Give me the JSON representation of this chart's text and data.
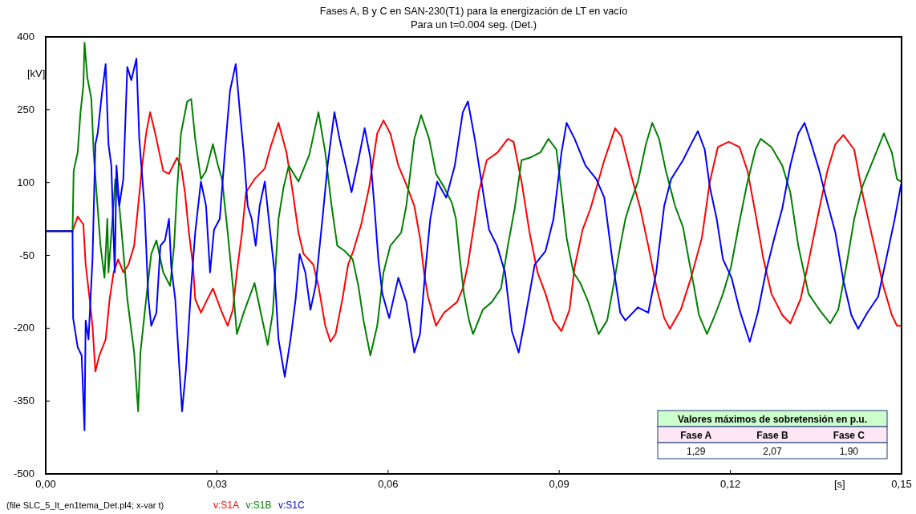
{
  "chart_data": {
    "type": "line",
    "title": "Fases A, B y C en SAN-230(T1) para la energización de LT en vacío",
    "subtitle": "Para un t=0.004 seg. (Det.)",
    "xlabel": "[s]",
    "ylabel": "[kV]",
    "xlim": [
      0,
      0.15
    ],
    "xticks": [
      {
        "value": 0,
        "label": "0,00"
      },
      {
        "value": 0.03,
        "label": "0,03"
      },
      {
        "value": 0.06,
        "label": "0,06"
      },
      {
        "value": 0.09,
        "label": "0,09"
      },
      {
        "value": 0.12,
        "label": "0,12"
      },
      {
        "value": 0.15,
        "label": "0,15"
      }
    ],
    "ylim": [
      -500,
      400
    ],
    "yticks": [
      -500,
      -350,
      -200,
      -50,
      100,
      250,
      400
    ],
    "grid": false,
    "legend": "bottom left",
    "marker": "none",
    "line_style": "solid",
    "annotations": [
      "(file SLC_5_lt_en1tema_Det.pl4; x-var t)",
      "Valores máximos de sobretensión en p.u.",
      "Fase A",
      "Fase B",
      "Fase C",
      "1,29",
      "2,07",
      "1,90"
    ],
    "series": [
      {
        "name": "v:S1A",
        "color": "#ff0000",
        "x": [
          0,
          0.0047,
          0.0056,
          0.0066,
          0.007,
          0.0077,
          0.0082,
          0.0087,
          0.0094,
          0.0105,
          0.0112,
          0.0119,
          0.0127,
          0.0136,
          0.0145,
          0.0155,
          0.0162,
          0.0169,
          0.0176,
          0.0183,
          0.0192,
          0.0199,
          0.0206,
          0.0216,
          0.023,
          0.0237,
          0.0244,
          0.0251,
          0.0258,
          0.0262,
          0.0272,
          0.0281,
          0.0293,
          0.0309,
          0.0319,
          0.0328,
          0.0335,
          0.0344,
          0.0351,
          0.0366,
          0.0384,
          0.0394,
          0.0408,
          0.0422,
          0.0433,
          0.0443,
          0.0452,
          0.0469,
          0.0478,
          0.049,
          0.0499,
          0.0508,
          0.052,
          0.053,
          0.0539,
          0.0553,
          0.0567,
          0.0581,
          0.0592,
          0.0604,
          0.0618,
          0.0632,
          0.0646,
          0.0656,
          0.0663,
          0.067,
          0.0684,
          0.0698,
          0.0721,
          0.0731,
          0.074,
          0.075,
          0.0759,
          0.0773,
          0.0792,
          0.081,
          0.082,
          0.0834,
          0.0848,
          0.0862,
          0.0876,
          0.089,
          0.0904,
          0.0918,
          0.0927,
          0.0941,
          0.0955,
          0.0979,
          0.0998,
          0.1009,
          0.1028,
          0.1042,
          0.1056,
          0.107,
          0.1084,
          0.1094,
          0.1113,
          0.1131,
          0.115,
          0.1164,
          0.1178,
          0.1197,
          0.1216,
          0.123,
          0.1244,
          0.1258,
          0.1272,
          0.1291,
          0.1305,
          0.1323,
          0.1337,
          0.1356,
          0.137,
          0.1384,
          0.1398,
          0.1417,
          0.1431,
          0.145,
          0.1468,
          0.1483,
          0.1492,
          0.1499
        ],
        "values": [
          0,
          0,
          30,
          14,
          -69,
          -140,
          -195,
          -289,
          -256,
          -223,
          -140,
          -85,
          -58,
          -85,
          -69,
          -30,
          52,
          135,
          201,
          245,
          201,
          162,
          124,
          118,
          151,
          135,
          80,
          -3,
          -69,
          -140,
          -168,
          -146,
          -118,
          -168,
          -195,
          -162,
          -85,
          -3,
          80,
          107,
          129,
          173,
          223,
          162,
          80,
          -3,
          -47,
          -69,
          -113,
          -195,
          -228,
          -212,
          -140,
          -69,
          -41,
          14,
          91,
          201,
          228,
          201,
          135,
          96,
          52,
          -14,
          -85,
          -135,
          -195,
          -168,
          -146,
          -118,
          -69,
          8,
          80,
          146,
          162,
          190,
          184,
          102,
          -3,
          -85,
          -129,
          -184,
          -206,
          -162,
          -74,
          3,
          47,
          146,
          212,
          195,
          107,
          47,
          -30,
          -113,
          -179,
          -201,
          -162,
          -96,
          -14,
          102,
          173,
          184,
          173,
          124,
          36,
          -58,
          -129,
          -173,
          -190,
          -140,
          -63,
          47,
          124,
          179,
          198,
          168,
          80,
          -19,
          -113,
          -173,
          -195,
          -195
        ]
      },
      {
        "name": "v:S1B",
        "color": "#008000",
        "x": [
          0,
          0.0047,
          0.0049,
          0.0056,
          0.0061,
          0.0066,
          0.0068,
          0.0073,
          0.008,
          0.0084,
          0.0089,
          0.0096,
          0.0103,
          0.0108,
          0.011,
          0.0117,
          0.0122,
          0.0129,
          0.0136,
          0.0143,
          0.0155,
          0.0162,
          0.0166,
          0.0176,
          0.0185,
          0.0194,
          0.0206,
          0.0218,
          0.0225,
          0.023,
          0.0237,
          0.0248,
          0.0255,
          0.0262,
          0.0272,
          0.0281,
          0.0293,
          0.0302,
          0.0309,
          0.0319,
          0.0328,
          0.0335,
          0.0347,
          0.0366,
          0.0377,
          0.0389,
          0.0398,
          0.0408,
          0.0417,
          0.0426,
          0.0443,
          0.0462,
          0.0478,
          0.049,
          0.0501,
          0.0511,
          0.0524,
          0.0538,
          0.0548,
          0.0557,
          0.0569,
          0.0581,
          0.0592,
          0.0604,
          0.0623,
          0.0632,
          0.0646,
          0.0658,
          0.0672,
          0.0684,
          0.0698,
          0.0712,
          0.0719,
          0.0726,
          0.0733,
          0.0742,
          0.0749,
          0.0766,
          0.0782,
          0.0798,
          0.081,
          0.0822,
          0.0834,
          0.0848,
          0.0867,
          0.0881,
          0.0895,
          0.0904,
          0.0913,
          0.0925,
          0.0937,
          0.0951,
          0.0969,
          0.0984,
          0.0995,
          0.1007,
          0.1016,
          0.1023,
          0.1038,
          0.1052,
          0.1063,
          0.1075,
          0.1087,
          0.1103,
          0.1117,
          0.1127,
          0.1136,
          0.1145,
          0.1159,
          0.1173,
          0.1187,
          0.1201,
          0.1215,
          0.1229,
          0.1244,
          0.1253,
          0.1272,
          0.1291,
          0.1305,
          0.1319,
          0.1337,
          0.1356,
          0.1375,
          0.1389,
          0.1403,
          0.1417,
          0.1431,
          0.145,
          0.1469,
          0.1483,
          0.1492,
          0.1499
        ],
        "values": [
          0,
          0,
          124,
          162,
          245,
          300,
          388,
          316,
          272,
          162,
          80,
          -30,
          -96,
          25,
          -85,
          25,
          107,
          52,
          -41,
          -140,
          -250,
          -371,
          -250,
          -140,
          -47,
          -19,
          -85,
          -113,
          -30,
          80,
          201,
          267,
          272,
          190,
          107,
          124,
          179,
          135,
          107,
          -3,
          -113,
          -212,
          -168,
          -107,
          -168,
          -234,
          -168,
          25,
          91,
          135,
          102,
          157,
          245,
          162,
          52,
          -30,
          -41,
          -58,
          -113,
          -184,
          -256,
          -195,
          -85,
          -30,
          -3,
          52,
          190,
          239,
          190,
          118,
          91,
          58,
          25,
          -58,
          -129,
          -184,
          -212,
          -162,
          -146,
          -118,
          -30,
          47,
          146,
          151,
          162,
          190,
          168,
          80,
          -14,
          -85,
          -107,
          -146,
          -212,
          -184,
          -113,
          -30,
          25,
          52,
          102,
          179,
          223,
          190,
          124,
          52,
          8,
          -58,
          -113,
          -173,
          -212,
          -173,
          -129,
          -74,
          14,
          96,
          168,
          190,
          173,
          135,
          80,
          -30,
          -129,
          -162,
          -190,
          -162,
          -74,
          25,
          91,
          146,
          201,
          162,
          107,
          102
        ]
      },
      {
        "name": "v:S1C",
        "color": "#0000ff",
        "x": [
          0,
          0.0047,
          0.0048,
          0.0056,
          0.0063,
          0.0068,
          0.007,
          0.0075,
          0.0082,
          0.0087,
          0.0091,
          0.0098,
          0.0105,
          0.011,
          0.0115,
          0.0121,
          0.0124,
          0.0129,
          0.0136,
          0.0143,
          0.015,
          0.0159,
          0.0164,
          0.0173,
          0.018,
          0.0185,
          0.0194,
          0.0201,
          0.0209,
          0.0216,
          0.022,
          0.0227,
          0.0234,
          0.0239,
          0.0246,
          0.0255,
          0.0262,
          0.0272,
          0.0281,
          0.0288,
          0.0295,
          0.0305,
          0.0314,
          0.0323,
          0.0333,
          0.034,
          0.0347,
          0.0354,
          0.0361,
          0.0368,
          0.0375,
          0.0384,
          0.0391,
          0.0401,
          0.0408,
          0.0419,
          0.0429,
          0.0438,
          0.0445,
          0.0455,
          0.0464,
          0.0473,
          0.0485,
          0.0494,
          0.0506,
          0.0515,
          0.0529,
          0.0536,
          0.0548,
          0.0559,
          0.0569,
          0.0576,
          0.0583,
          0.059,
          0.0602,
          0.0618,
          0.0632,
          0.0646,
          0.0656,
          0.0665,
          0.0674,
          0.0686,
          0.0702,
          0.0717,
          0.0731,
          0.074,
          0.0752,
          0.0763,
          0.0777,
          0.0791,
          0.0805,
          0.0817,
          0.0829,
          0.0838,
          0.0857,
          0.0876,
          0.089,
          0.0904,
          0.0913,
          0.0927,
          0.0946,
          0.0965,
          0.0979,
          0.0993,
          0.1007,
          0.1016,
          0.1038,
          0.1056,
          0.107,
          0.1084,
          0.1096,
          0.1117,
          0.1131,
          0.1143,
          0.1155,
          0.1164,
          0.1176,
          0.1187,
          0.1202,
          0.1216,
          0.1234,
          0.1248,
          0.1262,
          0.1276,
          0.1291,
          0.1305,
          0.1319,
          0.133,
          0.1342,
          0.1356,
          0.137,
          0.1384,
          0.1398,
          0.1412,
          0.1424,
          0.144,
          0.1459,
          0.1473,
          0.1488,
          0.1499
        ],
        "values": [
          0,
          0,
          -179,
          -239,
          -256,
          -410,
          -184,
          -223,
          -58,
          179,
          201,
          278,
          344,
          179,
          135,
          -85,
          135,
          52,
          107,
          338,
          311,
          355,
          190,
          52,
          -140,
          -195,
          -168,
          -30,
          -19,
          25,
          -74,
          -140,
          -278,
          -371,
          -283,
          -113,
          -3,
          102,
          52,
          -85,
          3,
          25,
          162,
          289,
          344,
          250,
          162,
          52,
          25,
          -30,
          52,
          102,
          25,
          -85,
          -223,
          -300,
          -223,
          -140,
          -47,
          -85,
          -162,
          -113,
          25,
          135,
          245,
          190,
          118,
          80,
          146,
          212,
          151,
          52,
          -58,
          -129,
          -179,
          -96,
          -146,
          -250,
          -212,
          -85,
          25,
          102,
          69,
          135,
          245,
          267,
          190,
          107,
          3,
          -30,
          -85,
          -206,
          -250,
          -195,
          -69,
          -41,
          25,
          162,
          223,
          190,
          135,
          107,
          69,
          -58,
          -168,
          -184,
          -157,
          -168,
          -85,
          52,
          107,
          146,
          179,
          206,
          168,
          91,
          25,
          -58,
          -96,
          -162,
          -228,
          -168,
          -85,
          -19,
          47,
          135,
          201,
          223,
          179,
          124,
          58,
          -3,
          -102,
          -173,
          -201,
          -168,
          -135,
          -58,
          25,
          96
        ]
      }
    ]
  }
}
